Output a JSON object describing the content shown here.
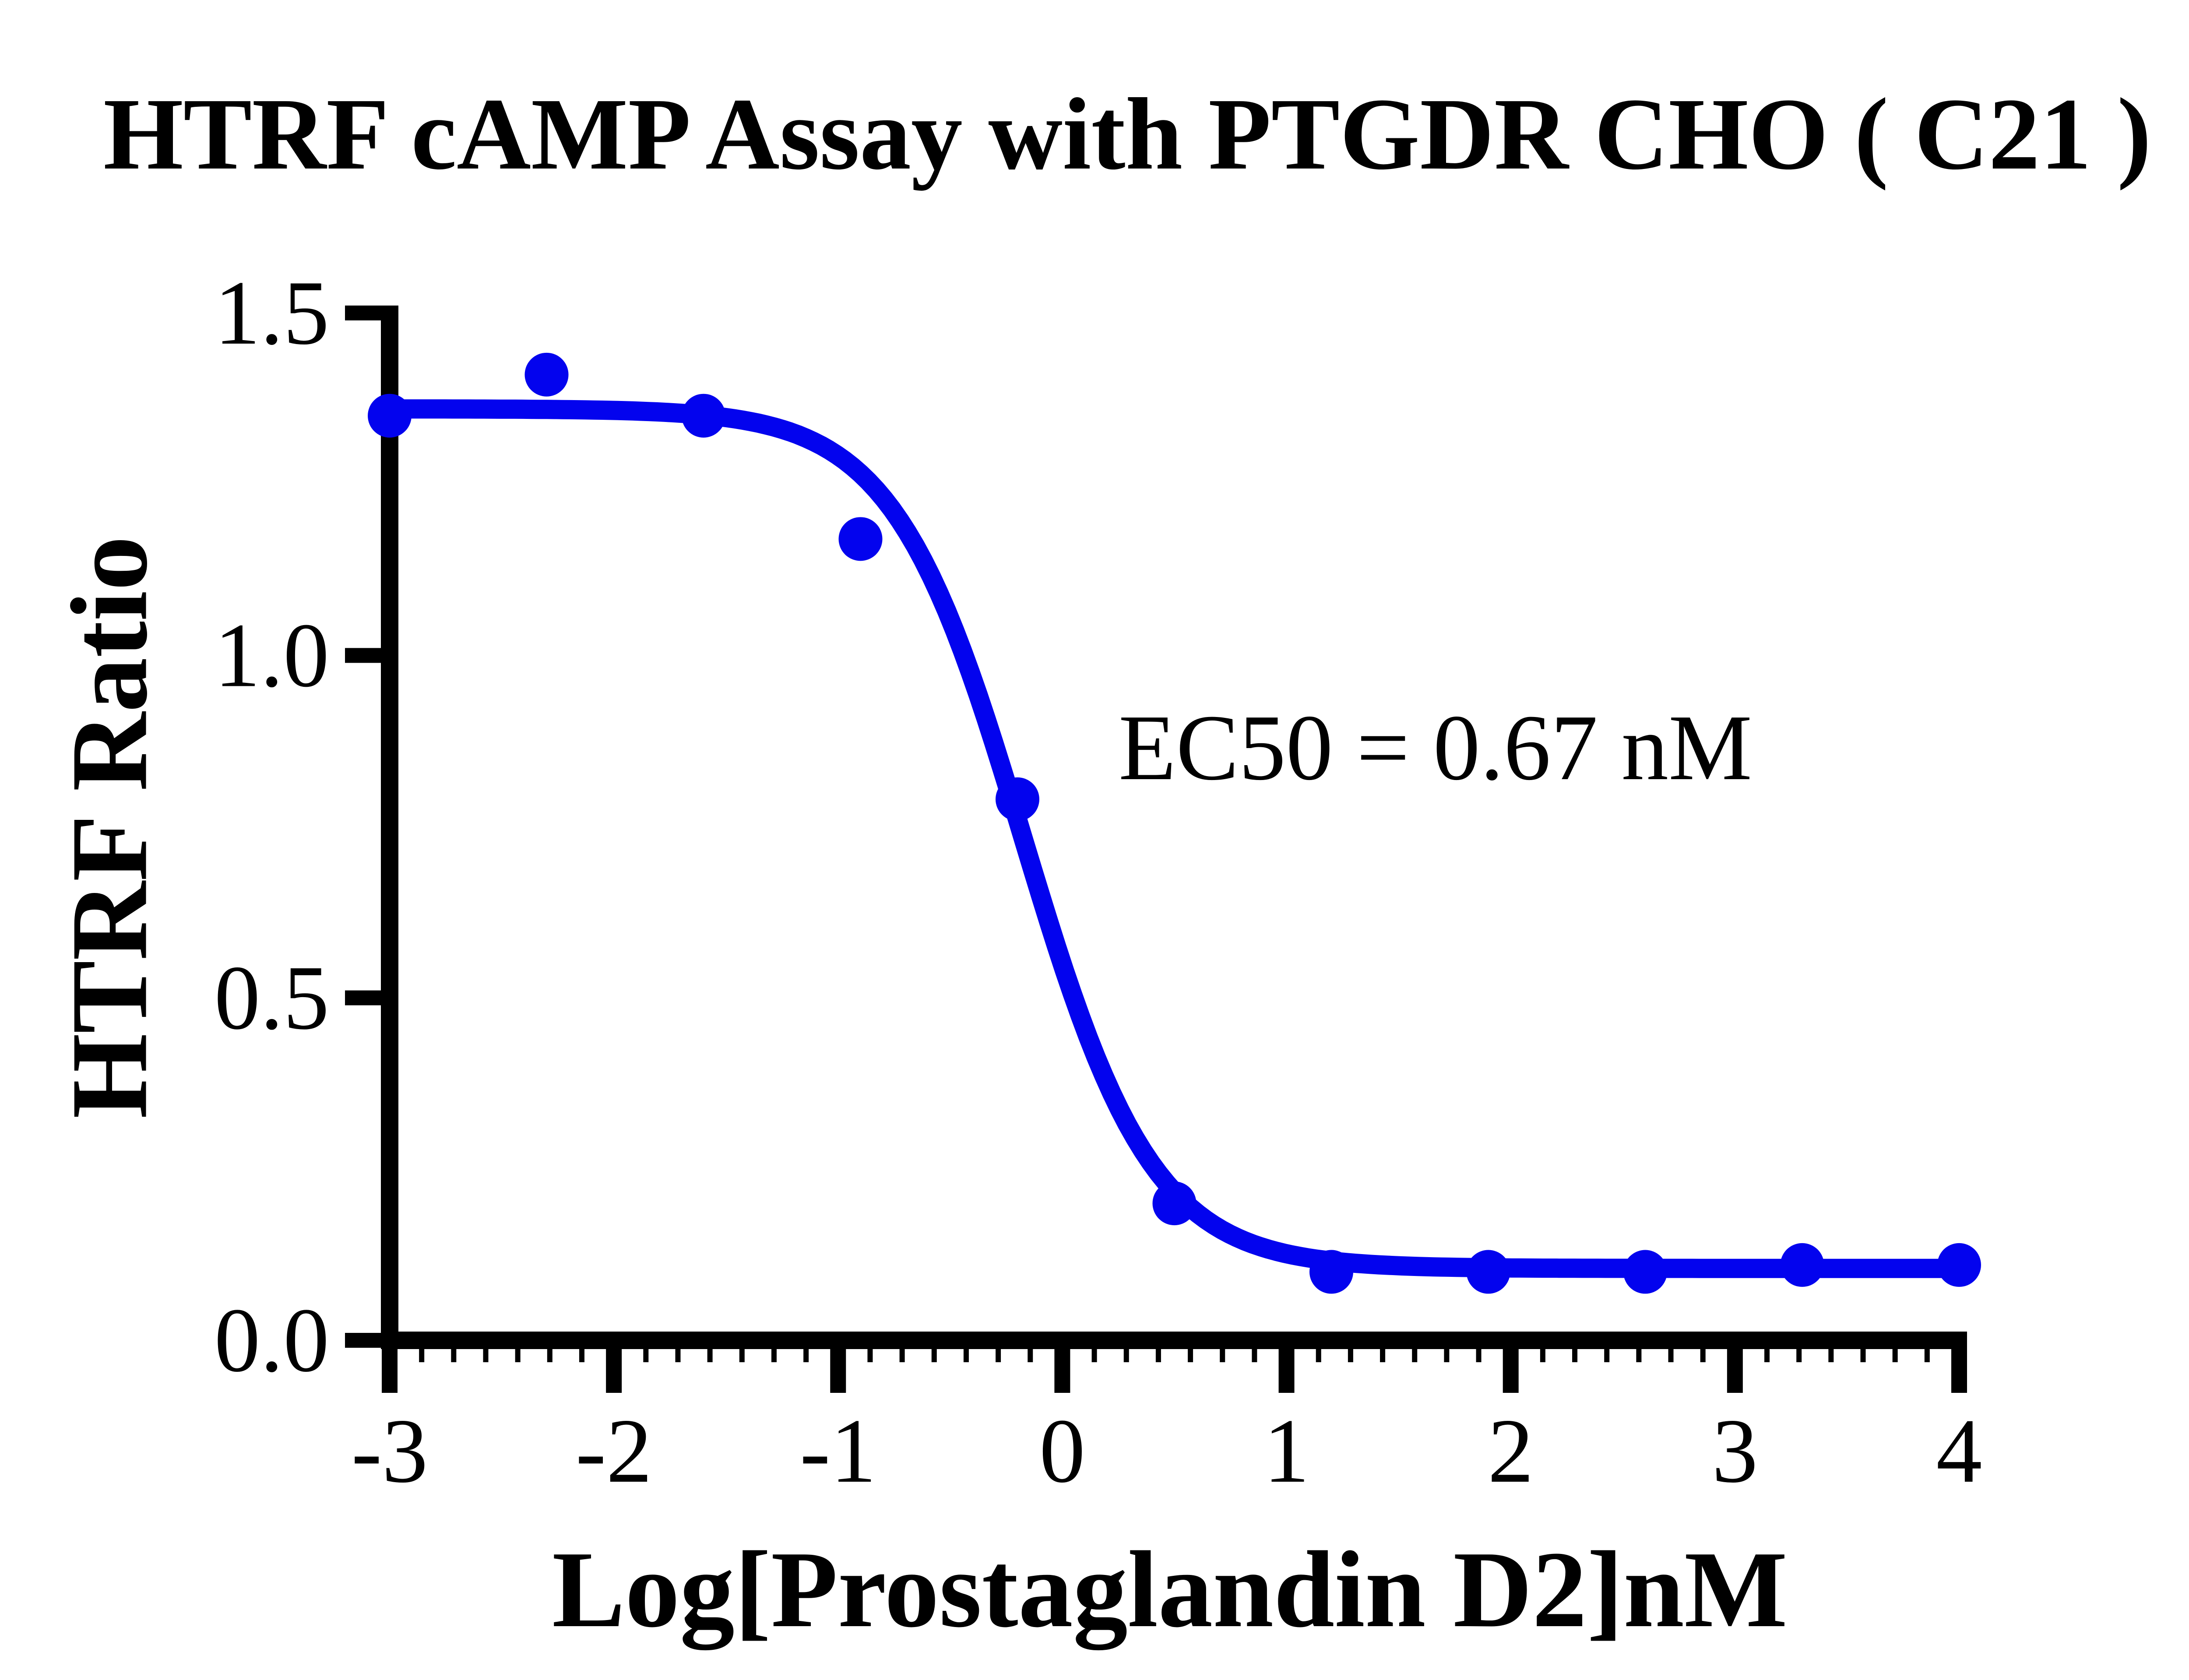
{
  "colors": {
    "curve": "#0303EE",
    "marker": "#0303EE",
    "axis": "#000000",
    "background": "#FFFFFF",
    "text": "#000000"
  },
  "chart_data": {
    "type": "scatter",
    "title": "HTRF cAMP Assay with PTGDR CHO ( C21 )",
    "xlabel": "Log[Prostaglandin D2]nM",
    "ylabel": "HTRF Ratio",
    "x_ticks": [
      -3,
      -2,
      -1,
      0,
      1,
      2,
      3,
      4
    ],
    "y_ticks": [
      0.0,
      0.5,
      1.0,
      1.5
    ],
    "xlim": [
      -3,
      4
    ],
    "ylim": [
      0.0,
      1.5
    ],
    "grid": false,
    "legend_position": "none",
    "minor_ticks_per_x_interval": 6,
    "annotation": {
      "text": "EC50 = 0.67 nM",
      "at_log_x": 0.25,
      "at_y": 0.82
    },
    "series": [
      {
        "name": "Prostaglandin D2",
        "marker": "circle",
        "x": [
          -3.0,
          -2.3,
          -1.6,
          -0.9,
          -0.2,
          0.5,
          1.2,
          1.9,
          2.6,
          3.3,
          4.0
        ],
        "y": [
          1.35,
          1.41,
          1.35,
          1.17,
          0.79,
          0.2,
          0.1,
          0.1,
          0.1,
          0.11,
          0.11
        ]
      }
    ],
    "fit_curve": {
      "model": "4PL sigmoid (dose-response, decreasing)",
      "top": 1.36,
      "bottom": 0.105,
      "log_ec50": -0.174,
      "hill_slope": 1.5,
      "ec50_nM": 0.67,
      "x_start": -3.0,
      "x_end": 4.0
    }
  }
}
